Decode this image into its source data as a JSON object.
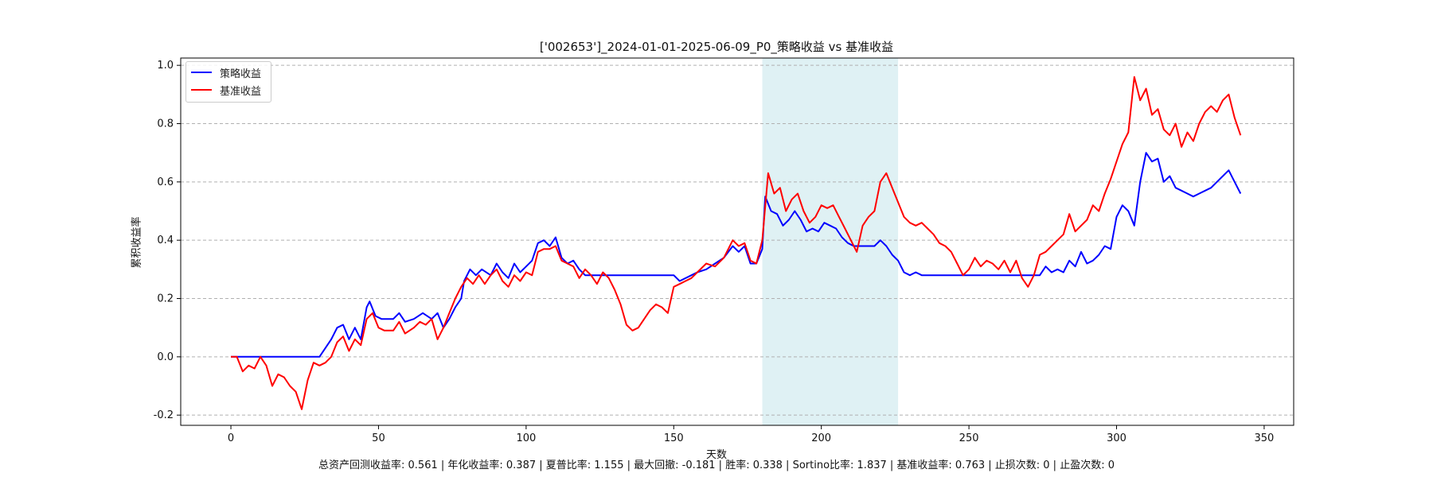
{
  "chart_data": {
    "type": "line",
    "title": "['002653']_2024-01-01-2025-06-09_P0_策略收益 vs 基准收益",
    "xlabel": "天数",
    "ylabel": "累积收益率",
    "xlim": [
      -17,
      360
    ],
    "ylim": [
      -0.235,
      1.025
    ],
    "xticks": [
      0,
      50,
      100,
      150,
      200,
      250,
      300,
      350
    ],
    "yticks": [
      -0.2,
      0.0,
      0.2,
      0.4,
      0.6,
      0.8,
      1.0
    ],
    "grid": "horizontal dashed",
    "legend_position": "top-left",
    "shaded_region": {
      "x": [
        180,
        226
      ],
      "color": "#d9eef2"
    },
    "series": [
      {
        "name": "策略收益",
        "color": "#0000ff",
        "points": [
          [
            0,
            0.0
          ],
          [
            30,
            0.0
          ],
          [
            32,
            0.03
          ],
          [
            34,
            0.06
          ],
          [
            36,
            0.1
          ],
          [
            38,
            0.11
          ],
          [
            40,
            0.06
          ],
          [
            42,
            0.1
          ],
          [
            44,
            0.06
          ],
          [
            46,
            0.17
          ],
          [
            47,
            0.19
          ],
          [
            49,
            0.14
          ],
          [
            51,
            0.13
          ],
          [
            55,
            0.13
          ],
          [
            57,
            0.15
          ],
          [
            59,
            0.12
          ],
          [
            62,
            0.13
          ],
          [
            65,
            0.15
          ],
          [
            68,
            0.13
          ],
          [
            70,
            0.15
          ],
          [
            72,
            0.1
          ],
          [
            74,
            0.13
          ],
          [
            76,
            0.17
          ],
          [
            78,
            0.2
          ],
          [
            79,
            0.26
          ],
          [
            81,
            0.3
          ],
          [
            83,
            0.28
          ],
          [
            85,
            0.3
          ],
          [
            88,
            0.28
          ],
          [
            90,
            0.32
          ],
          [
            92,
            0.29
          ],
          [
            94,
            0.27
          ],
          [
            96,
            0.32
          ],
          [
            98,
            0.29
          ],
          [
            100,
            0.31
          ],
          [
            102,
            0.33
          ],
          [
            104,
            0.39
          ],
          [
            106,
            0.4
          ],
          [
            108,
            0.38
          ],
          [
            110,
            0.41
          ],
          [
            112,
            0.34
          ],
          [
            114,
            0.32
          ],
          [
            116,
            0.33
          ],
          [
            118,
            0.3
          ],
          [
            120,
            0.28
          ],
          [
            150,
            0.28
          ],
          [
            152,
            0.26
          ],
          [
            156,
            0.28
          ],
          [
            158,
            0.29
          ],
          [
            161,
            0.3
          ],
          [
            164,
            0.32
          ],
          [
            167,
            0.34
          ],
          [
            170,
            0.38
          ],
          [
            172,
            0.36
          ],
          [
            174,
            0.38
          ],
          [
            176,
            0.32
          ],
          [
            178,
            0.32
          ],
          [
            180,
            0.37
          ],
          [
            181,
            0.55
          ],
          [
            183,
            0.5
          ],
          [
            185,
            0.49
          ],
          [
            187,
            0.45
          ],
          [
            189,
            0.47
          ],
          [
            191,
            0.5
          ],
          [
            193,
            0.47
          ],
          [
            195,
            0.43
          ],
          [
            197,
            0.44
          ],
          [
            199,
            0.43
          ],
          [
            201,
            0.46
          ],
          [
            203,
            0.45
          ],
          [
            205,
            0.44
          ],
          [
            207,
            0.41
          ],
          [
            209,
            0.39
          ],
          [
            211,
            0.38
          ],
          [
            218,
            0.38
          ],
          [
            220,
            0.4
          ],
          [
            222,
            0.38
          ],
          [
            224,
            0.35
          ],
          [
            226,
            0.33
          ],
          [
            228,
            0.29
          ],
          [
            230,
            0.28
          ],
          [
            232,
            0.29
          ],
          [
            234,
            0.28
          ],
          [
            274,
            0.28
          ],
          [
            276,
            0.31
          ],
          [
            278,
            0.29
          ],
          [
            280,
            0.3
          ],
          [
            282,
            0.29
          ],
          [
            284,
            0.33
          ],
          [
            286,
            0.31
          ],
          [
            288,
            0.36
          ],
          [
            290,
            0.32
          ],
          [
            292,
            0.33
          ],
          [
            294,
            0.35
          ],
          [
            296,
            0.38
          ],
          [
            298,
            0.37
          ],
          [
            300,
            0.48
          ],
          [
            302,
            0.52
          ],
          [
            304,
            0.5
          ],
          [
            306,
            0.45
          ],
          [
            308,
            0.6
          ],
          [
            310,
            0.7
          ],
          [
            312,
            0.67
          ],
          [
            314,
            0.68
          ],
          [
            316,
            0.6
          ],
          [
            318,
            0.62
          ],
          [
            320,
            0.58
          ],
          [
            322,
            0.57
          ],
          [
            324,
            0.56
          ],
          [
            326,
            0.55
          ],
          [
            328,
            0.56
          ],
          [
            330,
            0.57
          ],
          [
            332,
            0.58
          ],
          [
            334,
            0.6
          ],
          [
            336,
            0.62
          ],
          [
            338,
            0.64
          ],
          [
            340,
            0.6
          ],
          [
            342,
            0.56
          ]
        ]
      },
      {
        "name": "基准收益",
        "color": "#ff0000",
        "points": [
          [
            0,
            0.0
          ],
          [
            2,
            0.0
          ],
          [
            4,
            -0.05
          ],
          [
            6,
            -0.03
          ],
          [
            8,
            -0.04
          ],
          [
            10,
            0.0
          ],
          [
            12,
            -0.03
          ],
          [
            14,
            -0.1
          ],
          [
            16,
            -0.06
          ],
          [
            18,
            -0.07
          ],
          [
            20,
            -0.1
          ],
          [
            22,
            -0.12
          ],
          [
            24,
            -0.18
          ],
          [
            26,
            -0.08
          ],
          [
            28,
            -0.02
          ],
          [
            30,
            -0.03
          ],
          [
            32,
            -0.02
          ],
          [
            34,
            0.0
          ],
          [
            36,
            0.05
          ],
          [
            38,
            0.07
          ],
          [
            40,
            0.02
          ],
          [
            42,
            0.06
          ],
          [
            44,
            0.04
          ],
          [
            46,
            0.13
          ],
          [
            48,
            0.15
          ],
          [
            50,
            0.1
          ],
          [
            52,
            0.09
          ],
          [
            55,
            0.09
          ],
          [
            57,
            0.12
          ],
          [
            59,
            0.08
          ],
          [
            62,
            0.1
          ],
          [
            64,
            0.12
          ],
          [
            66,
            0.11
          ],
          [
            68,
            0.13
          ],
          [
            70,
            0.06
          ],
          [
            72,
            0.1
          ],
          [
            74,
            0.15
          ],
          [
            76,
            0.2
          ],
          [
            78,
            0.24
          ],
          [
            80,
            0.27
          ],
          [
            82,
            0.25
          ],
          [
            84,
            0.28
          ],
          [
            86,
            0.25
          ],
          [
            88,
            0.28
          ],
          [
            90,
            0.3
          ],
          [
            92,
            0.26
          ],
          [
            94,
            0.24
          ],
          [
            96,
            0.28
          ],
          [
            98,
            0.26
          ],
          [
            100,
            0.29
          ],
          [
            102,
            0.28
          ],
          [
            104,
            0.36
          ],
          [
            106,
            0.37
          ],
          [
            108,
            0.37
          ],
          [
            110,
            0.38
          ],
          [
            112,
            0.33
          ],
          [
            114,
            0.32
          ],
          [
            116,
            0.31
          ],
          [
            118,
            0.27
          ],
          [
            120,
            0.3
          ],
          [
            122,
            0.28
          ],
          [
            124,
            0.25
          ],
          [
            126,
            0.29
          ],
          [
            128,
            0.27
          ],
          [
            130,
            0.23
          ],
          [
            132,
            0.18
          ],
          [
            134,
            0.11
          ],
          [
            136,
            0.09
          ],
          [
            138,
            0.1
          ],
          [
            140,
            0.13
          ],
          [
            142,
            0.16
          ],
          [
            144,
            0.18
          ],
          [
            146,
            0.17
          ],
          [
            148,
            0.15
          ],
          [
            150,
            0.24
          ],
          [
            152,
            0.25
          ],
          [
            154,
            0.26
          ],
          [
            156,
            0.27
          ],
          [
            158,
            0.29
          ],
          [
            161,
            0.32
          ],
          [
            164,
            0.31
          ],
          [
            167,
            0.34
          ],
          [
            170,
            0.4
          ],
          [
            172,
            0.38
          ],
          [
            174,
            0.39
          ],
          [
            176,
            0.33
          ],
          [
            178,
            0.32
          ],
          [
            180,
            0.4
          ],
          [
            182,
            0.63
          ],
          [
            184,
            0.56
          ],
          [
            186,
            0.58
          ],
          [
            188,
            0.5
          ],
          [
            190,
            0.54
          ],
          [
            192,
            0.56
          ],
          [
            194,
            0.5
          ],
          [
            196,
            0.46
          ],
          [
            198,
            0.48
          ],
          [
            200,
            0.52
          ],
          [
            202,
            0.51
          ],
          [
            204,
            0.52
          ],
          [
            206,
            0.48
          ],
          [
            208,
            0.44
          ],
          [
            210,
            0.4
          ],
          [
            212,
            0.36
          ],
          [
            214,
            0.45
          ],
          [
            216,
            0.48
          ],
          [
            218,
            0.5
          ],
          [
            220,
            0.6
          ],
          [
            222,
            0.63
          ],
          [
            224,
            0.58
          ],
          [
            226,
            0.53
          ],
          [
            228,
            0.48
          ],
          [
            230,
            0.46
          ],
          [
            232,
            0.45
          ],
          [
            234,
            0.46
          ],
          [
            236,
            0.44
          ],
          [
            238,
            0.42
          ],
          [
            240,
            0.39
          ],
          [
            242,
            0.38
          ],
          [
            244,
            0.36
          ],
          [
            246,
            0.32
          ],
          [
            248,
            0.28
          ],
          [
            250,
            0.3
          ],
          [
            252,
            0.34
          ],
          [
            254,
            0.31
          ],
          [
            256,
            0.33
          ],
          [
            258,
            0.32
          ],
          [
            260,
            0.3
          ],
          [
            262,
            0.33
          ],
          [
            264,
            0.29
          ],
          [
            266,
            0.33
          ],
          [
            268,
            0.27
          ],
          [
            270,
            0.24
          ],
          [
            272,
            0.28
          ],
          [
            274,
            0.35
          ],
          [
            276,
            0.36
          ],
          [
            278,
            0.38
          ],
          [
            280,
            0.4
          ],
          [
            282,
            0.42
          ],
          [
            284,
            0.49
          ],
          [
            286,
            0.43
          ],
          [
            288,
            0.45
          ],
          [
            290,
            0.47
          ],
          [
            292,
            0.52
          ],
          [
            294,
            0.5
          ],
          [
            296,
            0.56
          ],
          [
            298,
            0.61
          ],
          [
            300,
            0.67
          ],
          [
            302,
            0.73
          ],
          [
            304,
            0.77
          ],
          [
            306,
            0.96
          ],
          [
            308,
            0.88
          ],
          [
            310,
            0.92
          ],
          [
            312,
            0.83
          ],
          [
            314,
            0.85
          ],
          [
            316,
            0.78
          ],
          [
            318,
            0.76
          ],
          [
            320,
            0.8
          ],
          [
            322,
            0.72
          ],
          [
            324,
            0.77
          ],
          [
            326,
            0.74
          ],
          [
            328,
            0.8
          ],
          [
            330,
            0.84
          ],
          [
            332,
            0.86
          ],
          [
            334,
            0.84
          ],
          [
            336,
            0.88
          ],
          [
            338,
            0.9
          ],
          [
            340,
            0.82
          ],
          [
            342,
            0.76
          ]
        ]
      }
    ]
  },
  "footer": "总资产回测收益率: 0.561 | 年化收益率: 0.387 | 夏普比率: 1.155 | 最大回撤: -0.181 | 胜率: 0.338 | Sortino比率: 1.837 | 基准收益率: 0.763 | 止损次数: 0 | 止盈次数: 0",
  "legend": [
    {
      "label": "策略收益",
      "color": "#0000ff"
    },
    {
      "label": "基准收益",
      "color": "#ff0000"
    }
  ]
}
